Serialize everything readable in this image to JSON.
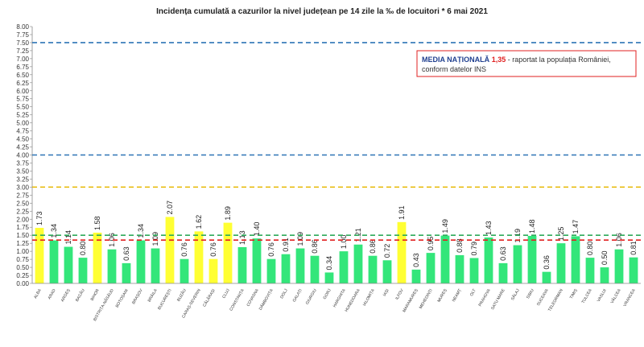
{
  "chart_data": {
    "type": "bar",
    "title": "Incidența cumulată a cazurilor la nivel județean pe 14 zile la ‰ de locuitori *   6 mai 2021",
    "categories": [
      "ALBA",
      "ARAD",
      "ARGEȘ",
      "BACĂU",
      "BIHOR",
      "BISTRIȚA-NĂSĂUD",
      "BOTOȘANI",
      "BRAȘOV",
      "BRĂILA",
      "BUCUREȘTI",
      "BUZĂU",
      "CARAȘ-SEVERIN",
      "CĂLĂRAȘI",
      "CLUJ",
      "CONSTANȚA",
      "COVASNA",
      "DÂMBOVIȚA",
      "DOLJ",
      "GALAȚI",
      "GIURGIU",
      "GORJ",
      "HARGHITA",
      "HUNEDOARA",
      "IALOMIȚA",
      "IAȘI",
      "ILFOV",
      "MARAMUREȘ",
      "MEHEDINȚI",
      "MUREȘ",
      "NEAMȚ",
      "OLT",
      "PRAHOVA",
      "SATU MARE",
      "SĂLAJ",
      "SIBIU",
      "SUCEAVA",
      "TELEORMAN",
      "TIMIȘ",
      "TULCEA",
      "VASLUI",
      "VÂLCEA",
      "VRANCEA"
    ],
    "values": [
      1.73,
      1.34,
      1.14,
      0.8,
      1.58,
      1.06,
      0.63,
      1.34,
      1.09,
      2.07,
      0.76,
      1.62,
      0.76,
      1.89,
      1.13,
      1.4,
      0.76,
      0.91,
      1.09,
      0.86,
      0.34,
      1.0,
      1.21,
      0.86,
      0.72,
      1.91,
      0.43,
      0.95,
      1.49,
      0.88,
      0.79,
      1.43,
      0.63,
      1.19,
      1.48,
      0.36,
      1.25,
      1.47,
      0.8,
      0.5,
      1.06,
      0.81
    ],
    "value_labels": [
      "1.73",
      "1.34",
      "1.14",
      "0.80",
      "1.58",
      "1.06",
      "0.63",
      "1.34",
      "1.09",
      "2.07",
      "0.76",
      "1.62",
      "0.76",
      "1.89",
      "1.13",
      "1.40",
      "0.76",
      "0.91",
      "1.09",
      "0.86",
      "0.34",
      "1.00",
      "1.21",
      "0.86",
      "0.72",
      "1.91",
      "0.43",
      "0.95",
      "1.49",
      "0.88",
      "0.79",
      "1.43",
      "0.63",
      "1.19",
      "1.48",
      "0.36",
      "1.25",
      "1.47",
      "0.80",
      "0.50",
      "1.06",
      "0.81"
    ],
    "colors": [
      "#ffff33",
      "#33e67a",
      "#33e67a",
      "#33e67a",
      "#ffff33",
      "#33e67a",
      "#33e67a",
      "#33e67a",
      "#33e67a",
      "#ffff33",
      "#33e67a",
      "#ffff33",
      "#ffff33",
      "#ffff33",
      "#33e67a",
      "#33e67a",
      "#33e67a",
      "#33e67a",
      "#33e67a",
      "#33e67a",
      "#33e67a",
      "#33e67a",
      "#33e67a",
      "#33e67a",
      "#33e67a",
      "#ffff33",
      "#33e67a",
      "#33e67a",
      "#33e67a",
      "#33e67a",
      "#33e67a",
      "#33e67a",
      "#33e67a",
      "#33e67a",
      "#33e67a",
      "#33e67a",
      "#33e67a",
      "#33e67a",
      "#33e67a",
      "#33e67a",
      "#33e67a",
      "#33e67a"
    ],
    "ylim": [
      0,
      8
    ],
    "yticks": [
      {
        "value": 0,
        "label": "0.00"
      },
      {
        "value": 0.25,
        "label": "0.25"
      },
      {
        "value": 0.5,
        "label": "0.50"
      },
      {
        "value": 0.75,
        "label": "0.75"
      },
      {
        "value": 1,
        "label": "1.00"
      },
      {
        "value": 1.25,
        "label": "1.25"
      },
      {
        "value": 1.5,
        "label": "1.50"
      },
      {
        "value": 1.75,
        "label": "1.75"
      },
      {
        "value": 2,
        "label": "2.00"
      },
      {
        "value": 2.25,
        "label": "2.25"
      },
      {
        "value": 2.5,
        "label": "2.50"
      },
      {
        "value": 2.75,
        "label": "2.75"
      },
      {
        "value": 3,
        "label": "3.00"
      },
      {
        "value": 3.25,
        "label": "3.25"
      },
      {
        "value": 3.5,
        "label": "3.50"
      },
      {
        "value": 3.75,
        "label": "3.75"
      },
      {
        "value": 4,
        "label": "4.00"
      },
      {
        "value": 4.25,
        "label": "4.25"
      },
      {
        "value": 4.5,
        "label": "4.50"
      },
      {
        "value": 4.75,
        "label": "4.75"
      },
      {
        "value": 5,
        "label": "5.00"
      },
      {
        "value": 5.25,
        "label": "5.25"
      },
      {
        "value": 5.5,
        "label": "5.50"
      },
      {
        "value": 5.75,
        "label": "5.75"
      },
      {
        "value": 6,
        "label": "6.00"
      },
      {
        "value": 6.25,
        "label": "6.25"
      },
      {
        "value": 6.5,
        "label": "6.50"
      },
      {
        "value": 6.75,
        "label": "6.75"
      },
      {
        "value": 7,
        "label": "7.00"
      },
      {
        "value": 7.25,
        "label": "7.25"
      },
      {
        "value": 7.5,
        "label": "7.50"
      },
      {
        "value": 7.75,
        "label": "7.75"
      },
      {
        "value": 8,
        "label": "8.00"
      }
    ],
    "reference_lines": [
      {
        "value": 7.5,
        "color": "#2e75b6"
      },
      {
        "value": 4,
        "color": "#2e75b6"
      },
      {
        "value": 3,
        "color": "#e6b800"
      },
      {
        "value": 1.5,
        "color": "#2eaa5a"
      },
      {
        "value": 1.35,
        "color": "#e02020"
      }
    ],
    "annotation": {
      "label": "MEDIA NAȚIONALĂ",
      "value_label": "1,35",
      "text": "- raportat la populația României,",
      "text2": "conform datelor INS"
    }
  }
}
